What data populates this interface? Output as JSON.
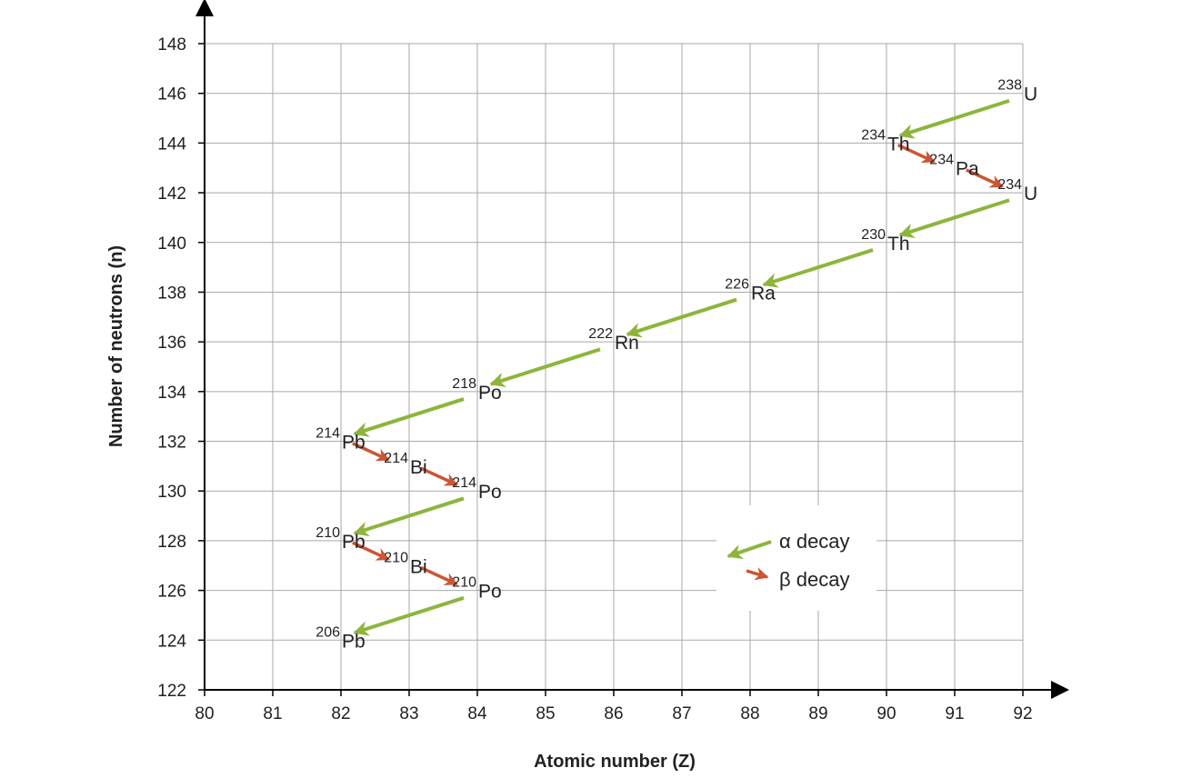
{
  "chart_data": {
    "type": "scatter",
    "title": "",
    "xlabel": "Atomic number (Z)",
    "ylabel": "Number of neutrons (n)",
    "xlim": [
      80,
      92
    ],
    "ylim": [
      122,
      148
    ],
    "x_ticks": [
      "80",
      "81",
      "82",
      "83",
      "84",
      "85",
      "86",
      "87",
      "88",
      "89",
      "90",
      "91",
      "92"
    ],
    "y_ticks": [
      "122",
      "124",
      "126",
      "128",
      "130",
      "132",
      "134",
      "136",
      "138",
      "140",
      "142",
      "144",
      "146",
      "148"
    ],
    "grid": true,
    "legend_position": "lower-right",
    "legend": [
      {
        "type": "alpha",
        "label": "α decay",
        "color": "#8db53c"
      },
      {
        "type": "beta",
        "label": "β decay",
        "color": "#cc5533"
      }
    ],
    "nuclides": [
      {
        "mass": "238",
        "symbol": "U",
        "z": 92,
        "n": 146
      },
      {
        "mass": "234",
        "symbol": "Th",
        "z": 90,
        "n": 144
      },
      {
        "mass": "234",
        "symbol": "Pa",
        "z": 91,
        "n": 143
      },
      {
        "mass": "234",
        "symbol": "U",
        "z": 92,
        "n": 142
      },
      {
        "mass": "230",
        "symbol": "Th",
        "z": 90,
        "n": 140
      },
      {
        "mass": "226",
        "symbol": "Ra",
        "z": 88,
        "n": 138
      },
      {
        "mass": "222",
        "symbol": "Rn",
        "z": 86,
        "n": 136
      },
      {
        "mass": "218",
        "symbol": "Po",
        "z": 84,
        "n": 134
      },
      {
        "mass": "214",
        "symbol": "Pb",
        "z": 82,
        "n": 132
      },
      {
        "mass": "214",
        "symbol": "Bi",
        "z": 83,
        "n": 131
      },
      {
        "mass": "214",
        "symbol": "Po",
        "z": 84,
        "n": 130
      },
      {
        "mass": "210",
        "symbol": "Pb",
        "z": 82,
        "n": 128
      },
      {
        "mass": "210",
        "symbol": "Bi",
        "z": 83,
        "n": 127
      },
      {
        "mass": "210",
        "symbol": "Po",
        "z": 84,
        "n": 126
      },
      {
        "mass": "206",
        "symbol": "Pb",
        "z": 82,
        "n": 124
      }
    ],
    "decays": [
      {
        "type": "alpha",
        "from": [
          92,
          146
        ],
        "to": [
          90,
          144
        ]
      },
      {
        "type": "beta",
        "from": [
          90,
          144
        ],
        "to": [
          91,
          143
        ]
      },
      {
        "type": "beta",
        "from": [
          91,
          143
        ],
        "to": [
          92,
          142
        ]
      },
      {
        "type": "alpha",
        "from": [
          92,
          142
        ],
        "to": [
          90,
          140
        ]
      },
      {
        "type": "alpha",
        "from": [
          90,
          140
        ],
        "to": [
          88,
          138
        ]
      },
      {
        "type": "alpha",
        "from": [
          88,
          138
        ],
        "to": [
          86,
          136
        ]
      },
      {
        "type": "alpha",
        "from": [
          86,
          136
        ],
        "to": [
          84,
          134
        ]
      },
      {
        "type": "alpha",
        "from": [
          84,
          134
        ],
        "to": [
          82,
          132
        ]
      },
      {
        "type": "beta",
        "from": [
          82,
          132
        ],
        "to": [
          83,
          131
        ]
      },
      {
        "type": "beta",
        "from": [
          83,
          131
        ],
        "to": [
          84,
          130
        ]
      },
      {
        "type": "alpha",
        "from": [
          84,
          130
        ],
        "to": [
          82,
          128
        ]
      },
      {
        "type": "beta",
        "from": [
          82,
          128
        ],
        "to": [
          83,
          127
        ]
      },
      {
        "type": "beta",
        "from": [
          83,
          127
        ],
        "to": [
          84,
          126
        ]
      },
      {
        "type": "alpha",
        "from": [
          84,
          126
        ],
        "to": [
          82,
          124
        ]
      }
    ]
  }
}
